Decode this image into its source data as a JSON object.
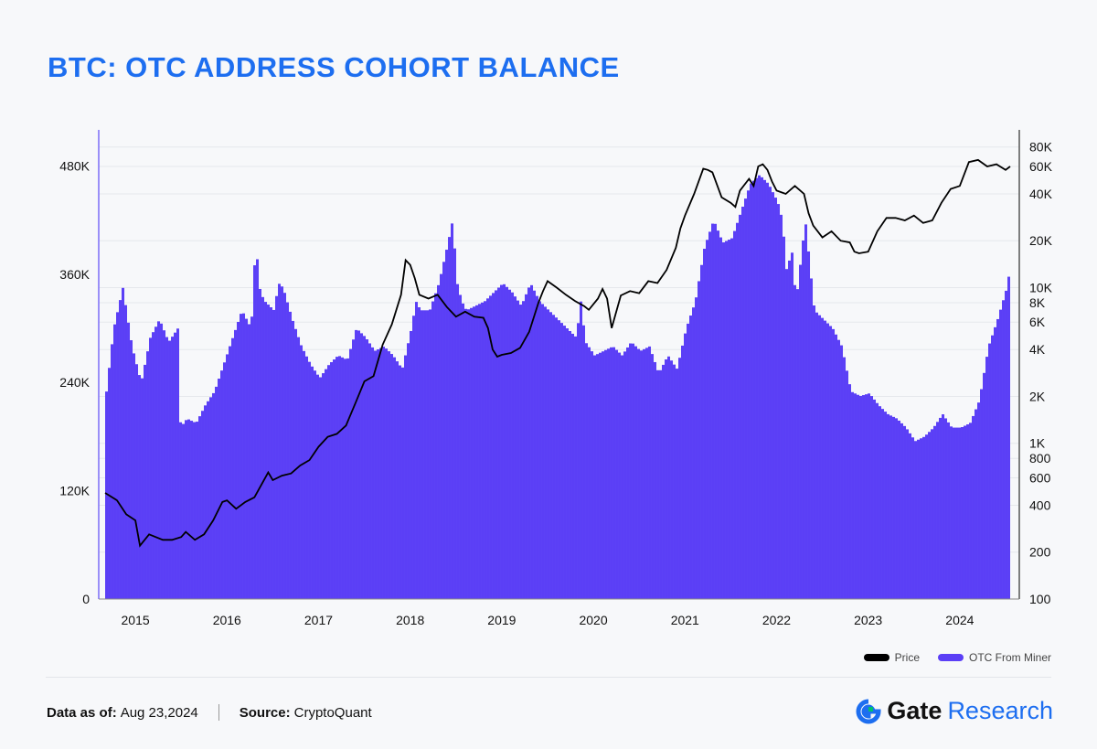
{
  "header": {
    "title": "BTC: OTC ADDRESS COHORT BALANCE"
  },
  "legend": {
    "price_label": "Price",
    "otc_label": "OTC From Miner"
  },
  "footer": {
    "date_label": "Data as of:",
    "date_value": "Aug 23,2024",
    "source_label": "Source:",
    "source_value": "CryptoQuant"
  },
  "brand": {
    "gate": "Gate",
    "research": "Research"
  },
  "colors": {
    "title": "#1d6ef0",
    "bars": "#5b3ff6",
    "price": "#000000",
    "brand_accent": "#1d6ef0",
    "brand_logo": "#00c26e"
  },
  "chart_data": {
    "type": "bar",
    "title": "BTC: OTC ADDRESS COHORT BALANCE",
    "x_range": [
      2014.6,
      2024.65
    ],
    "x_ticks": [
      "2015",
      "2016",
      "2017",
      "2018",
      "2019",
      "2020",
      "2021",
      "2022",
      "2023",
      "2024"
    ],
    "left_axis": {
      "ticks": [
        0,
        120000,
        240000,
        360000,
        480000
      ],
      "tick_labels": [
        "0",
        "120K",
        "240K",
        "360K",
        "480K"
      ],
      "ylim": [
        0,
        520000
      ]
    },
    "right_axis": {
      "scale": "log",
      "ticks": [
        100,
        200,
        400,
        600,
        800,
        1000,
        2000,
        4000,
        6000,
        8000,
        10000,
        20000,
        40000,
        60000,
        80000
      ],
      "tick_labels": [
        "100",
        "200",
        "400",
        "600",
        "800",
        "1K",
        "2K",
        "4K",
        "6K",
        "8K",
        "10K",
        "20K",
        "40K",
        "60K",
        "80K"
      ],
      "ylim": [
        100,
        95000
      ]
    },
    "grid": true,
    "legend_position": "bottom-right",
    "series": [
      {
        "name": "OTC From Miner",
        "type": "bar",
        "axis": "left",
        "x": [
          2014.67,
          2014.75,
          2014.85,
          2014.95,
          2015.05,
          2015.15,
          2015.25,
          2015.35,
          2015.45,
          2015.48,
          2015.55,
          2015.65,
          2015.75,
          2015.85,
          2015.95,
          2016.05,
          2016.15,
          2016.25,
          2016.3,
          2016.35,
          2016.4,
          2016.5,
          2016.55,
          2016.6,
          2016.7,
          2016.8,
          2016.9,
          2017.0,
          2017.1,
          2017.2,
          2017.3,
          2017.4,
          2017.5,
          2017.6,
          2017.7,
          2017.8,
          2017.9,
          2018.0,
          2018.05,
          2018.1,
          2018.2,
          2018.3,
          2018.4,
          2018.45,
          2018.5,
          2018.55,
          2018.6,
          2018.7,
          2018.8,
          2018.9,
          2019.0,
          2019.1,
          2019.2,
          2019.3,
          2019.4,
          2019.5,
          2019.6,
          2019.7,
          2019.8,
          2019.85,
          2019.9,
          2020.0,
          2020.1,
          2020.2,
          2020.3,
          2020.4,
          2020.5,
          2020.6,
          2020.7,
          2020.8,
          2020.9,
          2021.0,
          2021.1,
          2021.2,
          2021.3,
          2021.4,
          2021.5,
          2021.6,
          2021.7,
          2021.8,
          2021.9,
          2022.0,
          2022.05,
          2022.1,
          2022.15,
          2022.2,
          2022.3,
          2022.4,
          2022.5,
          2022.6,
          2022.7,
          2022.8,
          2022.9,
          2023.0,
          2023.1,
          2023.2,
          2023.3,
          2023.4,
          2023.5,
          2023.6,
          2023.7,
          2023.8,
          2023.9,
          2024.0,
          2024.1,
          2024.2,
          2024.3,
          2024.4,
          2024.5,
          2024.55
        ],
        "values": [
          230000,
          300000,
          345000,
          280000,
          240000,
          290000,
          310000,
          285000,
          300000,
          190000,
          200000,
          195000,
          215000,
          230000,
          260000,
          290000,
          320000,
          300000,
          395000,
          340000,
          330000,
          320000,
          350000,
          345000,
          310000,
          280000,
          260000,
          245000,
          260000,
          270000,
          265000,
          300000,
          290000,
          275000,
          280000,
          270000,
          255000,
          300000,
          330000,
          320000,
          320000,
          350000,
          395000,
          420000,
          350000,
          330000,
          320000,
          325000,
          330000,
          340000,
          350000,
          340000,
          325000,
          350000,
          330000,
          320000,
          310000,
          300000,
          290000,
          330000,
          285000,
          270000,
          275000,
          280000,
          270000,
          285000,
          275000,
          280000,
          250000,
          270000,
          255000,
          300000,
          330000,
          390000,
          420000,
          395000,
          400000,
          430000,
          460000,
          470000,
          460000,
          440000,
          420000,
          360000,
          390000,
          330000,
          420000,
          320000,
          310000,
          300000,
          280000,
          230000,
          225000,
          228000,
          215000,
          205000,
          200000,
          190000,
          175000,
          180000,
          190000,
          205000,
          190000,
          190000,
          195000,
          220000,
          280000,
          310000,
          345000,
          375000
        ]
      },
      {
        "name": "Price",
        "type": "line",
        "axis": "right",
        "x": [
          2014.67,
          2014.8,
          2014.9,
          2015.0,
          2015.05,
          2015.15,
          2015.3,
          2015.4,
          2015.5,
          2015.55,
          2015.65,
          2015.75,
          2015.85,
          2015.95,
          2016.0,
          2016.1,
          2016.2,
          2016.3,
          2016.45,
          2016.5,
          2016.6,
          2016.7,
          2016.8,
          2016.9,
          2017.0,
          2017.1,
          2017.2,
          2017.3,
          2017.4,
          2017.5,
          2017.6,
          2017.7,
          2017.8,
          2017.9,
          2017.95,
          2018.0,
          2018.05,
          2018.1,
          2018.2,
          2018.3,
          2018.4,
          2018.5,
          2018.6,
          2018.7,
          2018.8,
          2018.85,
          2018.9,
          2018.95,
          2019.0,
          2019.1,
          2019.2,
          2019.3,
          2019.4,
          2019.45,
          2019.5,
          2019.6,
          2019.7,
          2019.8,
          2019.9,
          2019.95,
          2020.05,
          2020.1,
          2020.15,
          2020.2,
          2020.3,
          2020.4,
          2020.5,
          2020.6,
          2020.7,
          2020.8,
          2020.9,
          2020.95,
          2021.0,
          2021.1,
          2021.2,
          2021.25,
          2021.3,
          2021.4,
          2021.5,
          2021.55,
          2021.6,
          2021.7,
          2021.75,
          2021.8,
          2021.85,
          2021.9,
          2021.95,
          2022.0,
          2022.1,
          2022.2,
          2022.3,
          2022.35,
          2022.4,
          2022.5,
          2022.6,
          2022.7,
          2022.8,
          2022.85,
          2022.9,
          2023.0,
          2023.1,
          2023.2,
          2023.3,
          2023.4,
          2023.5,
          2023.6,
          2023.7,
          2023.8,
          2023.9,
          2024.0,
          2024.1,
          2024.2,
          2024.3,
          2024.4,
          2024.5,
          2024.55
        ],
        "values": [
          480,
          430,
          350,
          320,
          220,
          260,
          240,
          240,
          250,
          270,
          240,
          260,
          320,
          420,
          430,
          380,
          420,
          450,
          650,
          580,
          620,
          640,
          720,
          780,
          950,
          1100,
          1150,
          1300,
          1800,
          2500,
          2700,
          4300,
          5800,
          9000,
          15000,
          14000,
          11500,
          9000,
          8500,
          9000,
          7500,
          6500,
          7000,
          6500,
          6400,
          5500,
          4000,
          3600,
          3700,
          3800,
          4100,
          5200,
          8000,
          9500,
          11000,
          10000,
          9000,
          8200,
          7600,
          7200,
          8500,
          9800,
          8500,
          5500,
          8900,
          9500,
          9200,
          11000,
          10700,
          13000,
          18000,
          24000,
          29000,
          40000,
          58000,
          57000,
          55000,
          38000,
          35000,
          33000,
          42000,
          50000,
          45000,
          60000,
          62000,
          57000,
          48000,
          42000,
          40000,
          45000,
          40000,
          30000,
          25000,
          21000,
          23000,
          20000,
          19500,
          17000,
          16600,
          17000,
          23000,
          28000,
          28000,
          27000,
          29000,
          26000,
          27000,
          35000,
          43000,
          45000,
          64000,
          66000,
          60000,
          62000,
          57000,
          60000
        ]
      }
    ]
  }
}
